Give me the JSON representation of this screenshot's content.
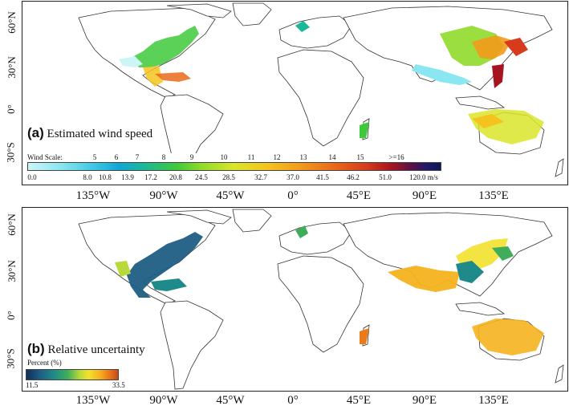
{
  "lat_ticks": [
    "60°N",
    "30°N",
    "0°",
    "30°S"
  ],
  "lon_ticks": [
    "135°W",
    "90°W",
    "45°W",
    "0°",
    "45°E",
    "90°E",
    "135°E"
  ],
  "panel_a": {
    "letter": "(a)",
    "title": "Estimated wind speed",
    "legend": {
      "scale_label": "Wind Scale:",
      "scale_numbers": [
        "5",
        "6",
        "7",
        "8",
        "9",
        "10",
        "11",
        "12",
        "13",
        "14",
        "15",
        ">=16"
      ],
      "speed_values": [
        "0.0",
        "8.0",
        "10.8",
        "13.9",
        "17.2",
        "20.8",
        "24.5",
        "28.5",
        "32.7",
        "37.0",
        "41.5",
        "46.2",
        "51.0",
        "120.0 m/s"
      ]
    }
  },
  "panel_b": {
    "letter": "(b)",
    "title": "Relative uncertainty",
    "legend": {
      "label": "Percent (%)",
      "min": "11.5",
      "max": "33.5"
    }
  },
  "colors": {
    "wind_low": "#cdf5f7",
    "wind_mid": "#3ec93a",
    "wind_high": "#d83a1c",
    "wind_max": "#0d1753",
    "uncert_low": "#0f2f5c",
    "uncert_mid": "#b7d93a",
    "uncert_high": "#c84a14"
  }
}
